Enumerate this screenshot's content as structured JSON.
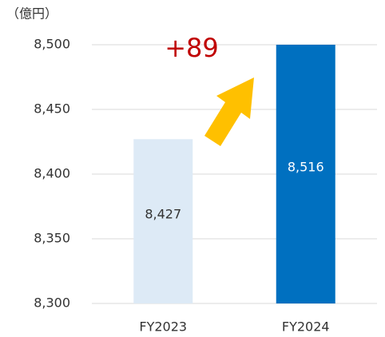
{
  "chart_data": {
    "type": "bar",
    "unit_label": "（億円）",
    "annotation": "+89",
    "categories": [
      "FY2023",
      "FY2024"
    ],
    "values": [
      8427,
      8516
    ],
    "value_labels": [
      "8,427",
      "8,516"
    ],
    "colors": [
      "#ddeaf6",
      "#0070c0"
    ],
    "value_label_colors": [
      "#333333",
      "#ffffff"
    ],
    "ylim": [
      8300,
      8500
    ],
    "yticks": [
      {
        "value": 8300,
        "label": "8,300"
      },
      {
        "value": 8350,
        "label": "8,350"
      },
      {
        "value": 8400,
        "label": "8,400"
      },
      {
        "value": 8450,
        "label": "8,450"
      },
      {
        "value": 8500,
        "label": "8,500"
      }
    ],
    "grid": true
  }
}
